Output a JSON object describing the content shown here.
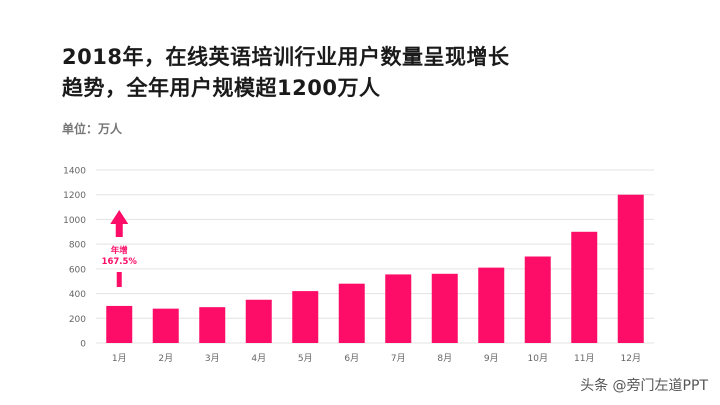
{
  "title_lines": [
    "2018年，在线英语培训行业用户数量呈现增长",
    "趋势，全年用户规模超1200万人"
  ],
  "unit_label": "单位：万人",
  "annotation": {
    "line1": "年增",
    "line2": "167.5%"
  },
  "watermark": "头条 @旁门左道PPT",
  "colors": {
    "bar": "#fd0d67",
    "grid": "#e3e3e3",
    "tick_text": "#666666",
    "annotation": "#fd0d67"
  },
  "chart_data": {
    "type": "bar",
    "categories": [
      "1月",
      "2月",
      "3月",
      "4月",
      "5月",
      "6月",
      "7月",
      "8月",
      "9月",
      "10月",
      "11月",
      "12月"
    ],
    "values": [
      300,
      278,
      290,
      350,
      420,
      480,
      555,
      560,
      610,
      700,
      900,
      1200
    ],
    "ylim": [
      0,
      1400
    ],
    "yticks": [
      0,
      200,
      400,
      600,
      800,
      1000,
      1200,
      1400
    ],
    "grid": true,
    "xlabel": "",
    "ylabel": ""
  }
}
